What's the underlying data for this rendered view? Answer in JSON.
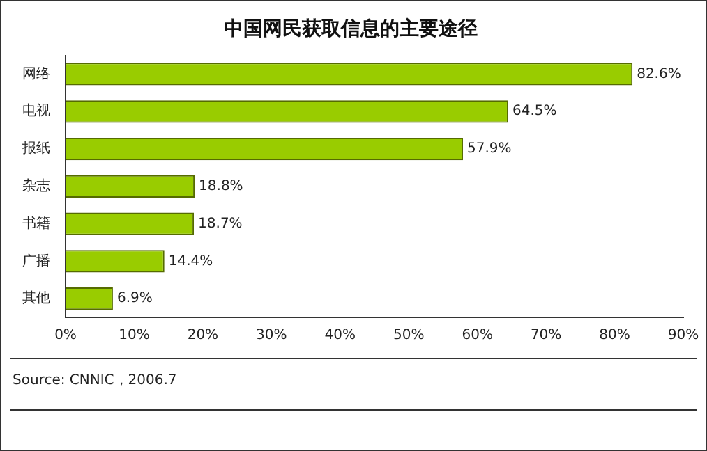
{
  "chart_data": {
    "type": "bar",
    "orientation": "horizontal",
    "title": "中国网民获取信息的主要途径",
    "categories": [
      "网络",
      "电视",
      "报纸",
      "杂志",
      "书籍",
      "广播",
      "其他"
    ],
    "values": [
      82.6,
      64.5,
      57.9,
      18.8,
      18.7,
      14.4,
      6.9
    ],
    "value_labels": [
      "82.6%",
      "64.5%",
      "57.9%",
      "18.8%",
      "18.7%",
      "14.4%",
      "6.9%"
    ],
    "color": "#99cc00",
    "xlim": [
      0,
      90
    ],
    "xticks": [
      {
        "value": 0,
        "label": "0%"
      },
      {
        "value": 10,
        "label": "10%"
      },
      {
        "value": 20,
        "label": "20%"
      },
      {
        "value": 30,
        "label": "30%"
      },
      {
        "value": 40,
        "label": "40%"
      },
      {
        "value": 50,
        "label": "50%"
      },
      {
        "value": 60,
        "label": "60%"
      },
      {
        "value": 70,
        "label": "70%"
      },
      {
        "value": 80,
        "label": "80%"
      },
      {
        "value": 90,
        "label": "90%"
      }
    ],
    "grid": false,
    "legend": false,
    "annotations": [
      "Source: CNNIC，2006.7"
    ]
  }
}
